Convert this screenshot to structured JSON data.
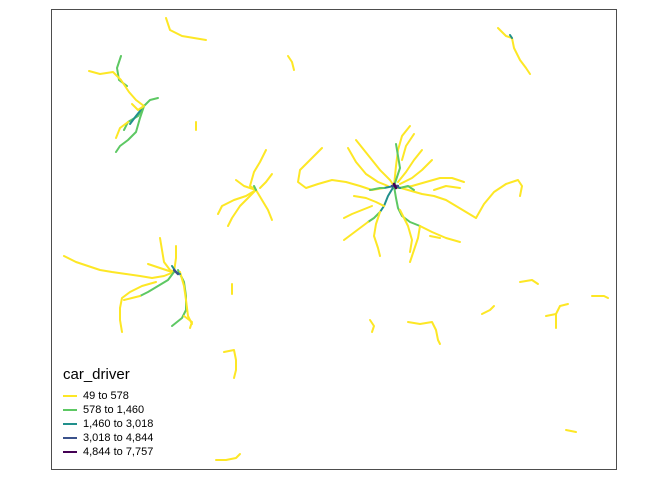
{
  "legend": {
    "title": "car_driver",
    "items": [
      {
        "label": "49 to 578",
        "color": "#FDE725"
      },
      {
        "label": "578 to 1,460",
        "color": "#5DC863"
      },
      {
        "label": "1,460 to 3,018",
        "color": "#21908C"
      },
      {
        "label": "3,018 to 4,844",
        "color": "#3B528B"
      },
      {
        "label": "4,844 to 7,757",
        "color": "#440154"
      }
    ]
  }
}
